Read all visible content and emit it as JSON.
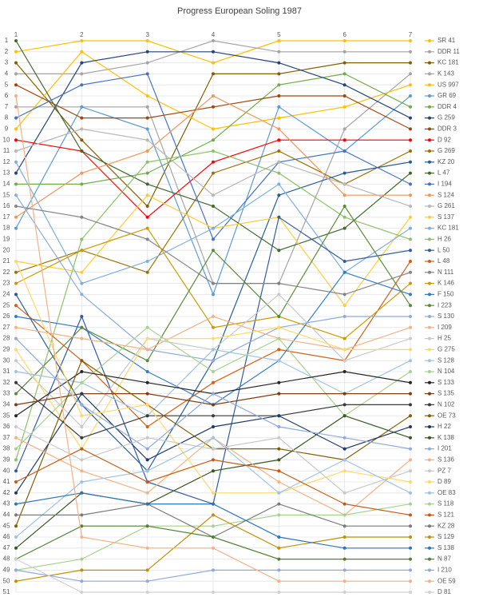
{
  "chart_data": {
    "type": "line",
    "title": "Progress European Soling 1987",
    "categories": [
      "1",
      "2",
      "3",
      "4",
      "5",
      "6",
      "7"
    ],
    "ylim": [
      1,
      51
    ],
    "y_reversed": true,
    "yticks": [
      1,
      2,
      3,
      4,
      5,
      6,
      7,
      8,
      9,
      10,
      11,
      12,
      13,
      14,
      15,
      16,
      17,
      18,
      19,
      20,
      21,
      22,
      23,
      24,
      25,
      26,
      27,
      28,
      29,
      30,
      31,
      32,
      33,
      34,
      35,
      36,
      37,
      38,
      39,
      40,
      41,
      42,
      43,
      44,
      45,
      46,
      47,
      48,
      49,
      50,
      51
    ],
    "grid": true,
    "legend": "right",
    "series": [
      {
        "name": "SR 41",
        "color": "#ffc000",
        "values": [
          2,
          1,
          1,
          3,
          1,
          1,
          1
        ]
      },
      {
        "name": "DDR 11",
        "color": "#a5a5a5",
        "values": [
          4,
          4,
          3,
          1,
          2,
          2,
          2
        ]
      },
      {
        "name": "KC 181",
        "color": "#806000",
        "values": [
          3,
          10,
          16,
          4,
          4,
          3,
          3
        ]
      },
      {
        "name": "K 143",
        "color": "#a5a5a5",
        "values": [
          7,
          7,
          7,
          23,
          23,
          9,
          4
        ]
      },
      {
        "name": "US 997",
        "color": "#ffc000",
        "values": [
          9,
          2,
          6,
          9,
          8,
          7,
          5
        ]
      },
      {
        "name": "GR 69",
        "color": "#5b9bd5",
        "values": [
          18,
          7,
          9,
          24,
          7,
          11,
          6
        ]
      },
      {
        "name": "DDR 4",
        "color": "#70ad47",
        "values": [
          14,
          14,
          13,
          10,
          5,
          4,
          7
        ]
      },
      {
        "name": "G 259",
        "color": "#264478",
        "values": [
          13,
          3,
          2,
          2,
          3,
          5,
          8
        ]
      },
      {
        "name": "DDR 3",
        "color": "#9e480e",
        "values": [
          5,
          8,
          8,
          7,
          6,
          6,
          9
        ]
      },
      {
        "name": "D 92",
        "color": "#ff0000",
        "values": [
          10,
          11,
          17,
          12,
          10,
          10,
          10
        ]
      },
      {
        "name": "G 269",
        "color": "#997300",
        "values": [
          22,
          20,
          22,
          13,
          11,
          14,
          11
        ]
      },
      {
        "name": "KZ 20",
        "color": "#255e91",
        "values": [
          24,
          34,
          40,
          30,
          15,
          13,
          12
        ]
      },
      {
        "name": "L 47",
        "color": "#43682b",
        "values": [
          1,
          11,
          14,
          16,
          20,
          18,
          13
        ]
      },
      {
        "name": "I 194",
        "color": "#4472c4",
        "values": [
          8,
          5,
          4,
          19,
          12,
          11,
          14
        ]
      },
      {
        "name": "S 124",
        "color": "#f1975a",
        "values": [
          17,
          13,
          11,
          6,
          9,
          15,
          15
        ]
      },
      {
        "name": "G 261",
        "color": "#b7b7b7",
        "values": [
          11,
          9,
          10,
          15,
          12,
          14,
          16
        ]
      },
      {
        "name": "S 137",
        "color": "#ffcd33",
        "values": [
          21,
          22,
          15,
          18,
          17,
          25,
          17
        ]
      },
      {
        "name": "KC 181",
        "color": "#7cafdd",
        "values": [
          12,
          23,
          21,
          18,
          14,
          22,
          18
        ]
      },
      {
        "name": "H 26",
        "color": "#8cc168",
        "values": [
          39,
          19,
          12,
          11,
          13,
          17,
          19
        ]
      },
      {
        "name": "L 50",
        "color": "#335aa1",
        "values": [
          40,
          26,
          41,
          43,
          17,
          21,
          20
        ]
      },
      {
        "name": "L 48",
        "color": "#d26012",
        "values": [
          25,
          30,
          36,
          32,
          29,
          30,
          21
        ]
      },
      {
        "name": "N 111",
        "color": "#848484",
        "values": [
          16,
          17,
          19,
          23,
          23,
          24,
          22
        ]
      },
      {
        "name": "K 146",
        "color": "#cc9a00",
        "values": [
          23,
          20,
          18,
          27,
          26,
          28,
          23
        ]
      },
      {
        "name": "F 150",
        "color": "#327dc2",
        "values": [
          26,
          27,
          31,
          34,
          30,
          22,
          24
        ]
      },
      {
        "name": "I 223",
        "color": "#5a8a39",
        "values": [
          33,
          27,
          30,
          20,
          26,
          16,
          25
        ]
      },
      {
        "name": "S 130",
        "color": "#8faadc",
        "values": [
          15,
          24,
          29,
          30,
          27,
          26,
          26
        ]
      },
      {
        "name": "I 209",
        "color": "#f4b183",
        "values": [
          27,
          28,
          29,
          26,
          28,
          29,
          27
        ]
      },
      {
        "name": "H 25",
        "color": "#c9c9c9",
        "values": [
          30,
          36,
          28,
          29,
          24,
          30,
          28
        ]
      },
      {
        "name": "G 275",
        "color": "#ffd966",
        "values": [
          29,
          38,
          28,
          28,
          27,
          29,
          29
        ]
      },
      {
        "name": "S 128",
        "color": "#9dc3e6",
        "values": [
          31,
          32,
          35,
          29,
          30,
          33,
          30
        ]
      },
      {
        "name": "N 104",
        "color": "#a9d18e",
        "values": [
          38,
          32,
          27,
          31,
          28,
          35,
          31
        ]
      },
      {
        "name": "S 133",
        "color": "#262626",
        "values": [
          35,
          31,
          32,
          33,
          32,
          31,
          32
        ]
      },
      {
        "name": "S 135",
        "color": "#843c0c",
        "values": [
          34,
          33,
          33,
          34,
          33,
          33,
          33
        ]
      },
      {
        "name": "N 102",
        "color": "#3a3a3a",
        "values": [
          32,
          37,
          35,
          35,
          35,
          34,
          34
        ]
      },
      {
        "name": "OE 73",
        "color": "#7f6000",
        "values": [
          45,
          30,
          34,
          38,
          38,
          39,
          35
        ]
      },
      {
        "name": "H 22",
        "color": "#203864",
        "values": [
          42,
          33,
          39,
          36,
          35,
          38,
          36
        ]
      },
      {
        "name": "K 138",
        "color": "#385723",
        "values": [
          47,
          42,
          43,
          40,
          39,
          35,
          37
        ]
      },
      {
        "name": "I 201",
        "color": "#8faadc",
        "values": [
          28,
          34,
          38,
          33,
          36,
          37,
          38
        ]
      },
      {
        "name": "S 136",
        "color": "#f4b183",
        "values": [
          37,
          40,
          42,
          37,
          41,
          44,
          39
        ]
      },
      {
        "name": "PZ 7",
        "color": "#c9c9c9",
        "values": [
          36,
          39,
          37,
          38,
          37,
          42,
          40
        ]
      },
      {
        "name": "D 89",
        "color": "#ffd966",
        "values": [
          21,
          35,
          34,
          42,
          42,
          40,
          41
        ]
      },
      {
        "name": "OE 83",
        "color": "#9dc3e6",
        "values": [
          46,
          41,
          40,
          37,
          42,
          39,
          42
        ]
      },
      {
        "name": "S 118",
        "color": "#a9d18e",
        "values": [
          49,
          48,
          45,
          45,
          44,
          44,
          43
        ]
      },
      {
        "name": "S 121",
        "color": "#c55a11",
        "values": [
          41,
          38,
          41,
          39,
          40,
          43,
          44
        ]
      },
      {
        "name": "KZ 28",
        "color": "#7b7b7b",
        "values": [
          44,
          44,
          43,
          46,
          43,
          45,
          45
        ]
      },
      {
        "name": "S 129",
        "color": "#bf9000",
        "values": [
          50,
          49,
          49,
          44,
          47,
          46,
          46
        ]
      },
      {
        "name": "S 138",
        "color": "#2e75b6",
        "values": [
          43,
          42,
          43,
          43,
          46,
          47,
          47
        ]
      },
      {
        "name": "N 87",
        "color": "#548235",
        "values": [
          48,
          45,
          45,
          46,
          48,
          48,
          48
        ]
      },
      {
        "name": "I 210",
        "color": "#8faadc",
        "values": [
          49,
          50,
          50,
          49,
          49,
          49,
          49
        ]
      },
      {
        "name": "OE 59",
        "color": "#f4b183",
        "values": [
          6,
          46,
          47,
          47,
          50,
          50,
          50
        ]
      },
      {
        "name": "D 81",
        "color": "#d0d0d0",
        "values": [
          48,
          51,
          51,
          51,
          51,
          51,
          51
        ]
      }
    ]
  }
}
